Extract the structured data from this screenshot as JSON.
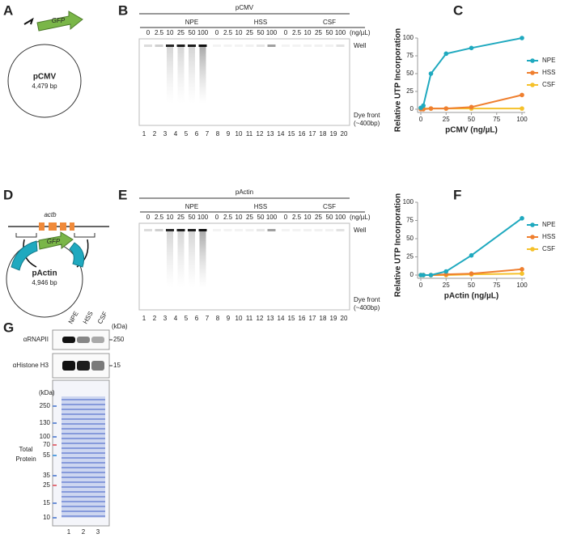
{
  "panels": {
    "A": {
      "label": "A",
      "gfp": "GFP",
      "name": "pCMV",
      "size": "4,479 bp"
    },
    "B": {
      "label": "B",
      "title": "pCMV",
      "groups": [
        "NPE",
        "HSS",
        "CSF"
      ],
      "concentrations": [
        "0",
        "2.5",
        "10",
        "25",
        "50",
        "100"
      ],
      "unit": "(ng/µL)",
      "well": "Well",
      "dye": "Dye front",
      "dye_size": "(~400bp)",
      "lanes": [
        "1",
        "2",
        "3",
        "4",
        "5",
        "6",
        "7",
        "8",
        "9",
        "10",
        "11",
        "12",
        "13",
        "14",
        "15",
        "16",
        "17",
        "18",
        "19",
        "20"
      ]
    },
    "C": {
      "label": "C"
    },
    "D": {
      "label": "D",
      "gene": "actb",
      "gfp": "GFP",
      "name": "pActin",
      "size": "4,946 bp"
    },
    "E": {
      "label": "E",
      "title": "pActin",
      "groups": [
        "NPE",
        "HSS",
        "CSF"
      ],
      "concentrations": [
        "0",
        "2.5",
        "10",
        "25",
        "50",
        "100"
      ],
      "unit": "(ng/µL)",
      "well": "Well",
      "dye": "Dye front",
      "dye_size": "(~400bp)",
      "lanes": [
        "1",
        "2",
        "3",
        "4",
        "5",
        "6",
        "7",
        "8",
        "9",
        "10",
        "11",
        "12",
        "13",
        "14",
        "15",
        "16",
        "17",
        "18",
        "19",
        "20"
      ]
    },
    "F": {
      "label": "F"
    },
    "G": {
      "label": "G",
      "lanes": [
        "NPE",
        "HSS",
        "CSF"
      ],
      "kda": "(kDa)",
      "blots": [
        {
          "name": "αRNAPII",
          "marker": "250"
        },
        {
          "name": "αHistone H3",
          "marker": "15"
        }
      ],
      "total_kda": "(kDa)",
      "markers": [
        "250",
        "130",
        "100",
        "70",
        "55",
        "35",
        "25",
        "15",
        "10"
      ],
      "total_label": [
        "Total",
        "Protein"
      ],
      "lane_numbers": [
        "1",
        "2",
        "3"
      ]
    }
  },
  "chart_data": [
    {
      "type": "line",
      "ylabel": "Relative UTP Incorporation",
      "xlabel": "pCMV (ng/µL)",
      "x": [
        0,
        2.5,
        10,
        25,
        50,
        100
      ],
      "xlim": [
        0,
        100
      ],
      "ylim": [
        0,
        100
      ],
      "xticks": [
        0,
        25,
        50,
        75,
        100
      ],
      "yticks": [
        0,
        25,
        50,
        75,
        100
      ],
      "series": [
        {
          "name": "NPE",
          "color": "#1fa9bf",
          "values": [
            2,
            5,
            50,
            78,
            86,
            100
          ]
        },
        {
          "name": "HSS",
          "color": "#ef7f2f",
          "values": [
            0,
            0,
            1,
            1,
            3,
            20
          ]
        },
        {
          "name": "CSF",
          "color": "#f5c12b",
          "values": [
            1,
            1,
            1,
            1,
            1,
            1
          ]
        }
      ]
    },
    {
      "type": "line",
      "ylabel": "Relative UTP Incorporation",
      "xlabel": "pActin (ng/µL)",
      "x": [
        0,
        2.5,
        10,
        25,
        50,
        100
      ],
      "xlim": [
        0,
        100
      ],
      "ylim": [
        0,
        100
      ],
      "xticks": [
        0,
        25,
        50,
        75,
        100
      ],
      "yticks": [
        0,
        25,
        50,
        75,
        100
      ],
      "series": [
        {
          "name": "NPE",
          "color": "#1fa9bf",
          "values": [
            0,
            0,
            0,
            5,
            27,
            78
          ]
        },
        {
          "name": "HSS",
          "color": "#ef7f2f",
          "values": [
            0,
            0,
            0,
            1,
            2,
            8
          ]
        },
        {
          "name": "CSF",
          "color": "#f5c12b",
          "values": [
            0,
            0,
            0,
            0,
            1,
            2
          ]
        }
      ]
    }
  ]
}
